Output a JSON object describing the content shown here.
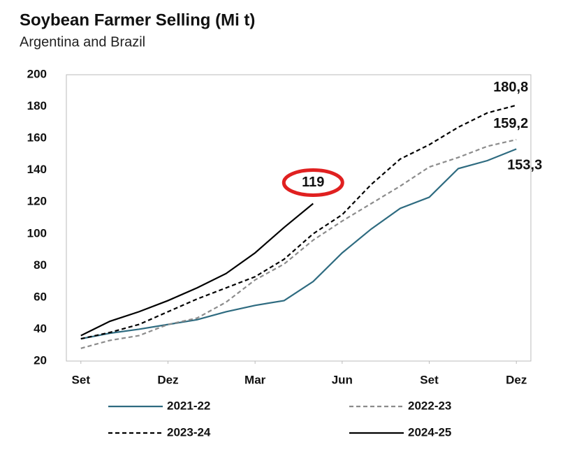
{
  "chart_data": {
    "type": "line",
    "title": "Soybean Farmer Selling (Mi t)",
    "subtitle": "Argentina and Brazil",
    "x": [
      0,
      1,
      2,
      3,
      4,
      5,
      6,
      7,
      8,
      9,
      10,
      11,
      12,
      13,
      14,
      15
    ],
    "xlim": [
      -0.5,
      15.5
    ],
    "xticks": [
      {
        "value": 0,
        "label": "Set"
      },
      {
        "value": 3,
        "label": "Dez"
      },
      {
        "value": 6,
        "label": "Mar"
      },
      {
        "value": 9,
        "label": "Jun"
      },
      {
        "value": 12,
        "label": "Set"
      },
      {
        "value": 15,
        "label": "Dez"
      }
    ],
    "ylim": [
      20,
      200
    ],
    "yticks": [
      20,
      40,
      60,
      80,
      100,
      120,
      140,
      160,
      180,
      200
    ],
    "grid": false,
    "legend": "bottom",
    "series": [
      {
        "name": "2021-22",
        "color": "#2e6b80",
        "dash": false,
        "values": [
          34,
          37.5,
          40,
          43,
          46,
          51,
          55,
          58,
          70,
          88,
          103,
          116,
          123,
          141,
          146,
          153.3
        ],
        "value_labels": [
          null,
          null,
          null,
          null,
          null,
          null,
          null,
          null,
          null,
          null,
          null,
          null,
          null,
          null,
          null,
          "153,3"
        ]
      },
      {
        "name": "2022-23",
        "color": "#8c8c8c",
        "dash": true,
        "values": [
          28,
          33,
          36,
          43,
          47,
          57,
          71,
          81,
          96,
          108,
          119,
          130,
          142,
          148,
          155,
          159.2
        ],
        "value_labels": [
          null,
          null,
          null,
          null,
          null,
          null,
          null,
          null,
          null,
          null,
          null,
          null,
          null,
          null,
          null,
          "159,2"
        ]
      },
      {
        "name": "2023-24",
        "color": "#000000",
        "dash": true,
        "values": [
          34,
          38,
          43,
          51,
          59,
          66,
          73,
          84,
          100,
          112,
          131,
          147,
          156,
          167,
          176,
          180.8
        ],
        "value_labels": [
          null,
          null,
          null,
          null,
          null,
          null,
          null,
          null,
          null,
          null,
          null,
          null,
          null,
          null,
          null,
          "180,8"
        ]
      },
      {
        "name": "2024-25",
        "color": "#000000",
        "dash": false,
        "values": [
          36,
          45,
          51,
          58,
          66,
          75,
          88,
          104,
          119,
          null,
          null,
          null,
          null,
          null,
          null,
          null
        ],
        "value_labels": [
          null,
          null,
          null,
          null,
          null,
          null,
          null,
          null,
          "119",
          null,
          null,
          null,
          null,
          null,
          null,
          null
        ]
      }
    ]
  }
}
